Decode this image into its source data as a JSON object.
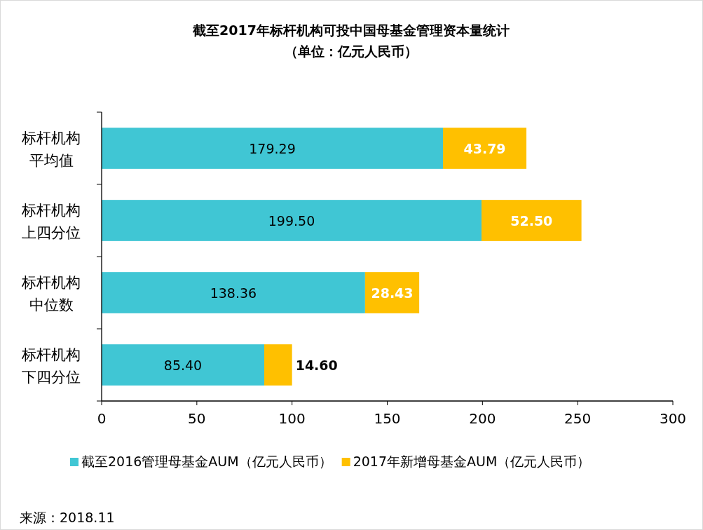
{
  "chart_data": {
    "type": "bar",
    "orientation": "horizontal",
    "stacked": true,
    "title": "截至2017年标杆机构可投中国母基金管理资本量统计",
    "subtitle": "（单位：亿元人民币）",
    "categories": [
      "标杆机构平均值",
      "标杆机构上四分位",
      "标杆机构中位数",
      "标杆机构下四分位"
    ],
    "series": [
      {
        "name": "截至2016管理母基金AUM（亿元人民币）",
        "color": "#40c6d4",
        "values": [
          179.29,
          199.5,
          138.36,
          85.4
        ],
        "value_labels": [
          "179.29",
          "199.50",
          "138.36",
          "85.40"
        ]
      },
      {
        "name": "2017年新增母基金AUM（亿元人民币）",
        "color": "#ffc000",
        "values": [
          43.79,
          52.5,
          28.43,
          14.6
        ],
        "value_labels": [
          "43.79",
          "52.50",
          "28.43",
          "14.60"
        ]
      }
    ],
    "xlim": [
      0,
      300
    ],
    "xticks": [
      0,
      50,
      100,
      150,
      200,
      250,
      300
    ],
    "grid": false,
    "legend": "bottom",
    "annotations": [
      "来源：2018.11"
    ]
  }
}
